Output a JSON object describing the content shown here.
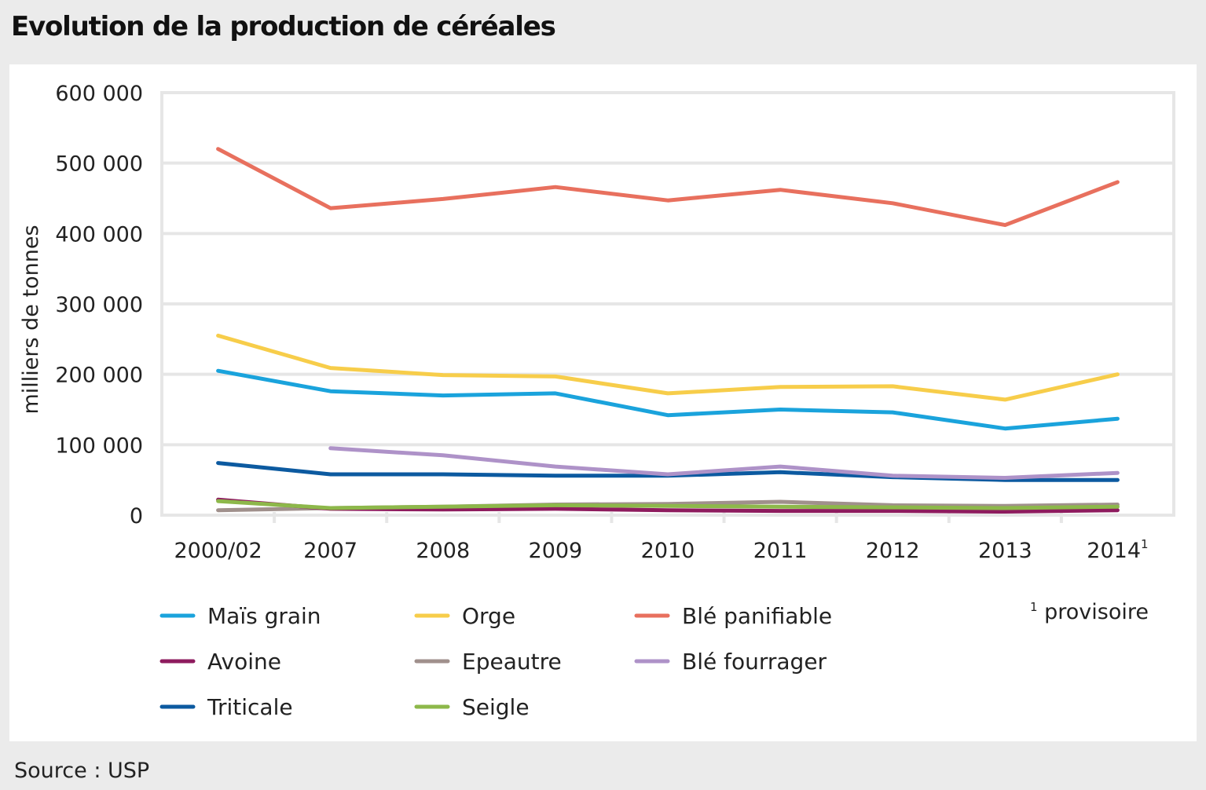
{
  "title": "Evolution de la production de céréales",
  "source": "Source : USP",
  "footnote": {
    "marker": "1",
    "text": "provisoire"
  },
  "colors": {
    "grid": "#e6e6e6",
    "background": "#ffffff",
    "page": "#ebebeb"
  },
  "chart_data": {
    "type": "line",
    "title": "Evolution de la production de céréales",
    "xlabel": "",
    "ylabel": "milliers de tonnes",
    "ylim": [
      0,
      600000
    ],
    "yticks": [
      0,
      100000,
      200000,
      300000,
      400000,
      500000,
      600000
    ],
    "ytick_labels": [
      "0",
      "100 000",
      "200 000",
      "300 000",
      "400 000",
      "500 000",
      "600 000"
    ],
    "categories": [
      "2000/02",
      "2007",
      "2008",
      "2009",
      "2010",
      "2011",
      "2012",
      "2013",
      "2014"
    ],
    "category_superscripts": [
      "",
      "",
      "",
      "",
      "",
      "",
      "",
      "",
      "1"
    ],
    "grid": true,
    "legend_position": "bottom",
    "series": [
      {
        "name": "Maïs grain",
        "color": "#1aa3dc",
        "values": [
          205000,
          176000,
          170000,
          173000,
          142000,
          150000,
          146000,
          123000,
          137000
        ]
      },
      {
        "name": "Orge",
        "color": "#f7cd4a",
        "values": [
          255000,
          209000,
          199000,
          197000,
          173000,
          182000,
          183000,
          164000,
          200000
        ]
      },
      {
        "name": "Blé panifiable",
        "color": "#e8705e",
        "values": [
          520000,
          436000,
          449000,
          466000,
          447000,
          462000,
          443000,
          412000,
          473000
        ]
      },
      {
        "name": "Avoine",
        "color": "#8e1b5e",
        "values": [
          22000,
          9000,
          8000,
          9000,
          7000,
          6000,
          6000,
          5000,
          7000
        ]
      },
      {
        "name": "Epeautre",
        "color": "#a0908c",
        "values": [
          7000,
          10000,
          12000,
          15000,
          16000,
          19000,
          14000,
          13000,
          15000
        ]
      },
      {
        "name": "Blé fourrager",
        "color": "#ae92c8",
        "values": [
          null,
          95000,
          85000,
          69000,
          58000,
          69000,
          56000,
          53000,
          60000
        ]
      },
      {
        "name": "Triticale",
        "color": "#0c5aa0",
        "values": [
          74000,
          58000,
          58000,
          56000,
          56000,
          61000,
          54000,
          50000,
          50000
        ]
      },
      {
        "name": "Seigle",
        "color": "#8db84a",
        "values": [
          20000,
          10000,
          12000,
          14000,
          13000,
          12000,
          11000,
          10000,
          12000
        ]
      }
    ]
  }
}
